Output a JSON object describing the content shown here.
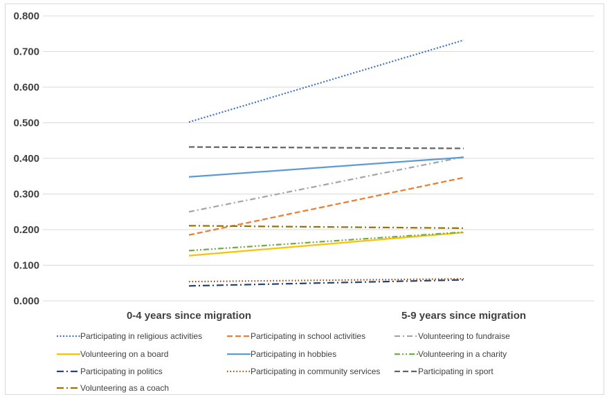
{
  "chart_data": {
    "type": "line",
    "title": "",
    "xlabel": "",
    "ylabel": "",
    "categories": [
      "0-4 years since migration",
      "5-9 years since migration"
    ],
    "ylim": [
      0,
      0.8
    ],
    "yticks": [
      "0.000",
      "0.100",
      "0.200",
      "0.300",
      "0.400",
      "0.500",
      "0.600",
      "0.700",
      "0.800"
    ],
    "grid": true,
    "legend_position": "bottom",
    "series": [
      {
        "name": "Participating in religious activities",
        "values": [
          0.502,
          0.732
        ],
        "color": "#4472c4",
        "dash": "dotted"
      },
      {
        "name": "Participating in school activities",
        "values": [
          0.185,
          0.346
        ],
        "color": "#ed7d31",
        "dash": "dashed"
      },
      {
        "name": "Volunteering to fundraise",
        "values": [
          0.25,
          0.404
        ],
        "color": "#a5a5a5",
        "dash": "dash-dot"
      },
      {
        "name": "Volunteering on a board",
        "values": [
          0.127,
          0.192
        ],
        "color": "#ffc000",
        "dash": "solid"
      },
      {
        "name": "Participating in hobbies",
        "values": [
          0.348,
          0.403
        ],
        "color": "#5b9bd5",
        "dash": "solid"
      },
      {
        "name": "Volunteering in a charity",
        "values": [
          0.141,
          0.193
        ],
        "color": "#70ad47",
        "dash": "dash-dot-dot"
      },
      {
        "name": "Participating in politics",
        "values": [
          0.042,
          0.059
        ],
        "color": "#264478",
        "dash": "long-dash-dot"
      },
      {
        "name": "Participating in community services",
        "values": [
          0.054,
          0.062
        ],
        "color": "#9e480e",
        "dash": "round-dot"
      },
      {
        "name": "Participating in sport",
        "values": [
          0.432,
          0.428
        ],
        "color": "#636363",
        "dash": "dashed"
      },
      {
        "name": "Volunteering as a coach",
        "values": [
          0.211,
          0.204
        ],
        "color": "#997300",
        "dash": "long-dash-dot"
      }
    ]
  }
}
